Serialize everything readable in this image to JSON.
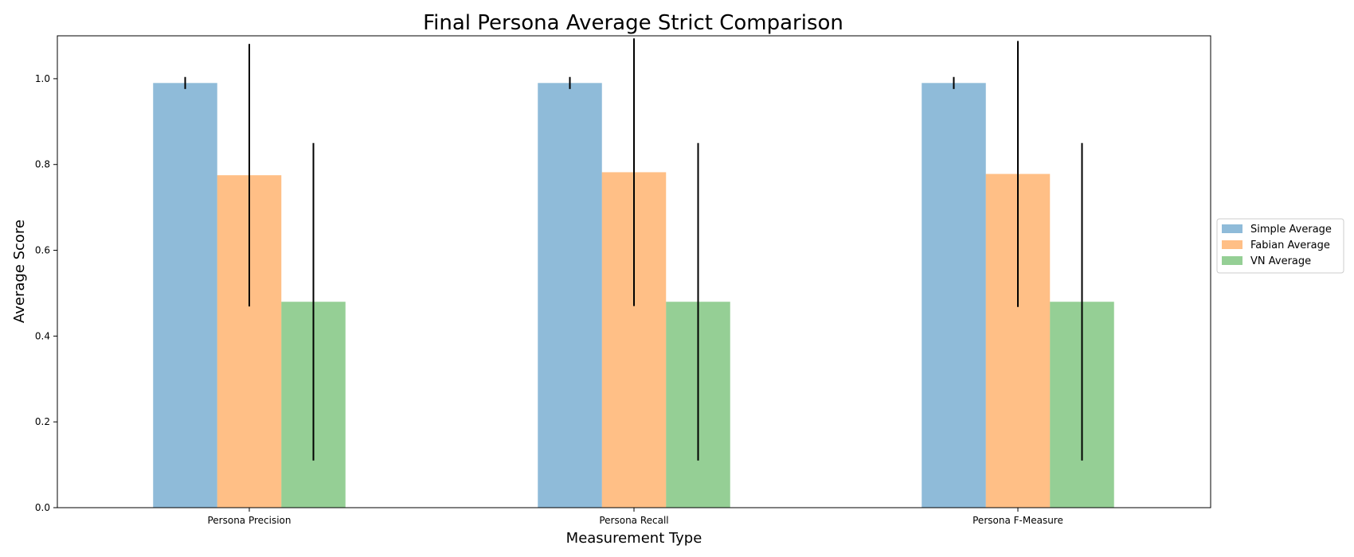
{
  "chart_data": {
    "type": "bar",
    "title": "Final Persona Average Strict Comparison",
    "xlabel": "Measurement Type",
    "ylabel": "Average Score",
    "categories": [
      "Persona Precision",
      "Persona Recall",
      "Persona F-Measure"
    ],
    "ylim": [
      0,
      1.1
    ],
    "yticks": [
      "0.0",
      "0.2",
      "0.4",
      "0.6",
      "0.8",
      "1.0"
    ],
    "series": [
      {
        "name": "Simple Average",
        "color": "#1f77b4",
        "values": [
          0.99,
          0.99,
          0.99
        ],
        "error": [
          0.014,
          0.014,
          0.014
        ]
      },
      {
        "name": "Fabian Average",
        "color": "#ff7f0e",
        "values": [
          0.775,
          0.782,
          0.778
        ],
        "error": [
          0.306,
          0.312,
          0.31
        ]
      },
      {
        "name": "VN Average",
        "color": "#2ca02c",
        "values": [
          0.48,
          0.48,
          0.48
        ],
        "error": [
          0.37,
          0.37,
          0.37
        ]
      }
    ],
    "bar_opacity": 0.5,
    "legend_position": "right",
    "grid": false
  }
}
